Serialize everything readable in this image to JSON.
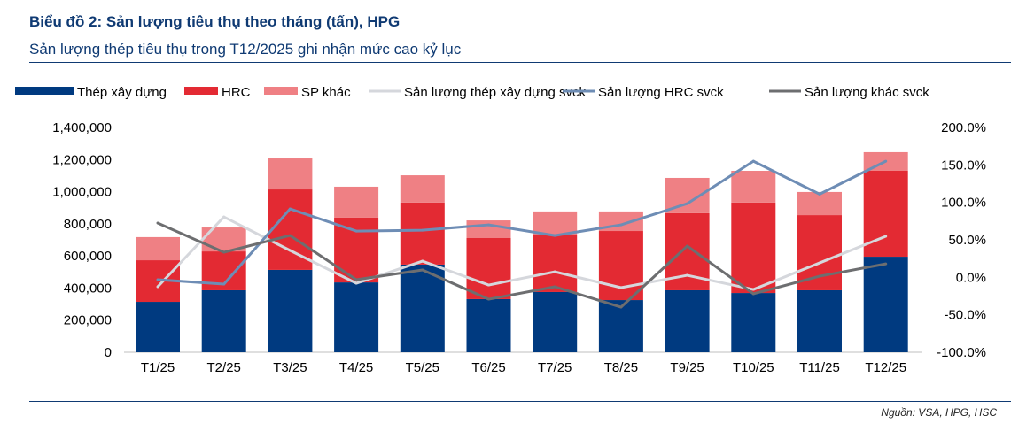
{
  "header": {
    "title": "Biểu đồ 2: Sản lượng tiêu thụ theo tháng (tấn), HPG",
    "subtitle": "Sản lượng thép tiêu thụ trong T12/2025 ghi nhận mức cao kỷ lục"
  },
  "source": "Nguồn: VSA, HPG, HSC",
  "chart_data": {
    "type": "bar",
    "stacked": true,
    "categories": [
      "T1/25",
      "T2/25",
      "T3/25",
      "T4/25",
      "T5/25",
      "T6/25",
      "T7/25",
      "T8/25",
      "T9/25",
      "T10/25",
      "T11/25",
      "T12/25"
    ],
    "series": [
      {
        "name": "Thép xây dựng",
        "axis": "left",
        "kind": "bar",
        "color": "#003a80",
        "values": [
          314000,
          386000,
          513000,
          435000,
          546000,
          331000,
          375000,
          325000,
          386000,
          369000,
          386000,
          595000
        ]
      },
      {
        "name": "HRC",
        "axis": "left",
        "kind": "bar",
        "color": "#e32a33",
        "values": [
          259000,
          242000,
          501000,
          403000,
          386000,
          380000,
          358000,
          430000,
          480000,
          563000,
          468000,
          535000
        ]
      },
      {
        "name": "SP khác",
        "axis": "left",
        "kind": "bar",
        "color": "#ef8084",
        "values": [
          144000,
          149000,
          193000,
          193000,
          170000,
          110000,
          144000,
          122000,
          220000,
          198000,
          144000,
          116000
        ]
      },
      {
        "name": "Sản lượng thép xây dựng svck",
        "axis": "right",
        "kind": "line",
        "color": "#d5d7dc",
        "values": [
          -12.6,
          80.6,
          35.8,
          -7.9,
          21.6,
          -10.3,
          7.4,
          -13.8,
          2.7,
          -16.2,
          19.2,
          54.7
        ]
      },
      {
        "name": "Sản lượng HRC svck",
        "axis": "right",
        "kind": "line",
        "color": "#6e8db5",
        "values": [
          -3.2,
          -9.1,
          91.3,
          61.7,
          62.9,
          70.0,
          55.8,
          70.0,
          98.3,
          155.0,
          111.0,
          155.0
        ]
      },
      {
        "name": "Sản lượng khác svck",
        "axis": "right",
        "kind": "line",
        "color": "#6d6e70",
        "values": [
          72.4,
          33.4,
          55.8,
          -3.2,
          9.8,
          -29.2,
          -12.6,
          -39.8,
          41.7,
          -22.0,
          1.5,
          18.0
        ]
      }
    ],
    "ylim_left": [
      0,
      1400000
    ],
    "ylim_right": [
      -100,
      200
    ],
    "left_ticks": [
      "0",
      "200,000",
      "400,000",
      "600,000",
      "800,000",
      "1,000,000",
      "1,200,000",
      "1,400,000"
    ],
    "right_ticks": [
      "-100.0%",
      "-50.0%",
      "0.0%",
      "50.0%",
      "100.0%",
      "150.0%",
      "200.0%"
    ],
    "grid": false,
    "legend": "top"
  }
}
